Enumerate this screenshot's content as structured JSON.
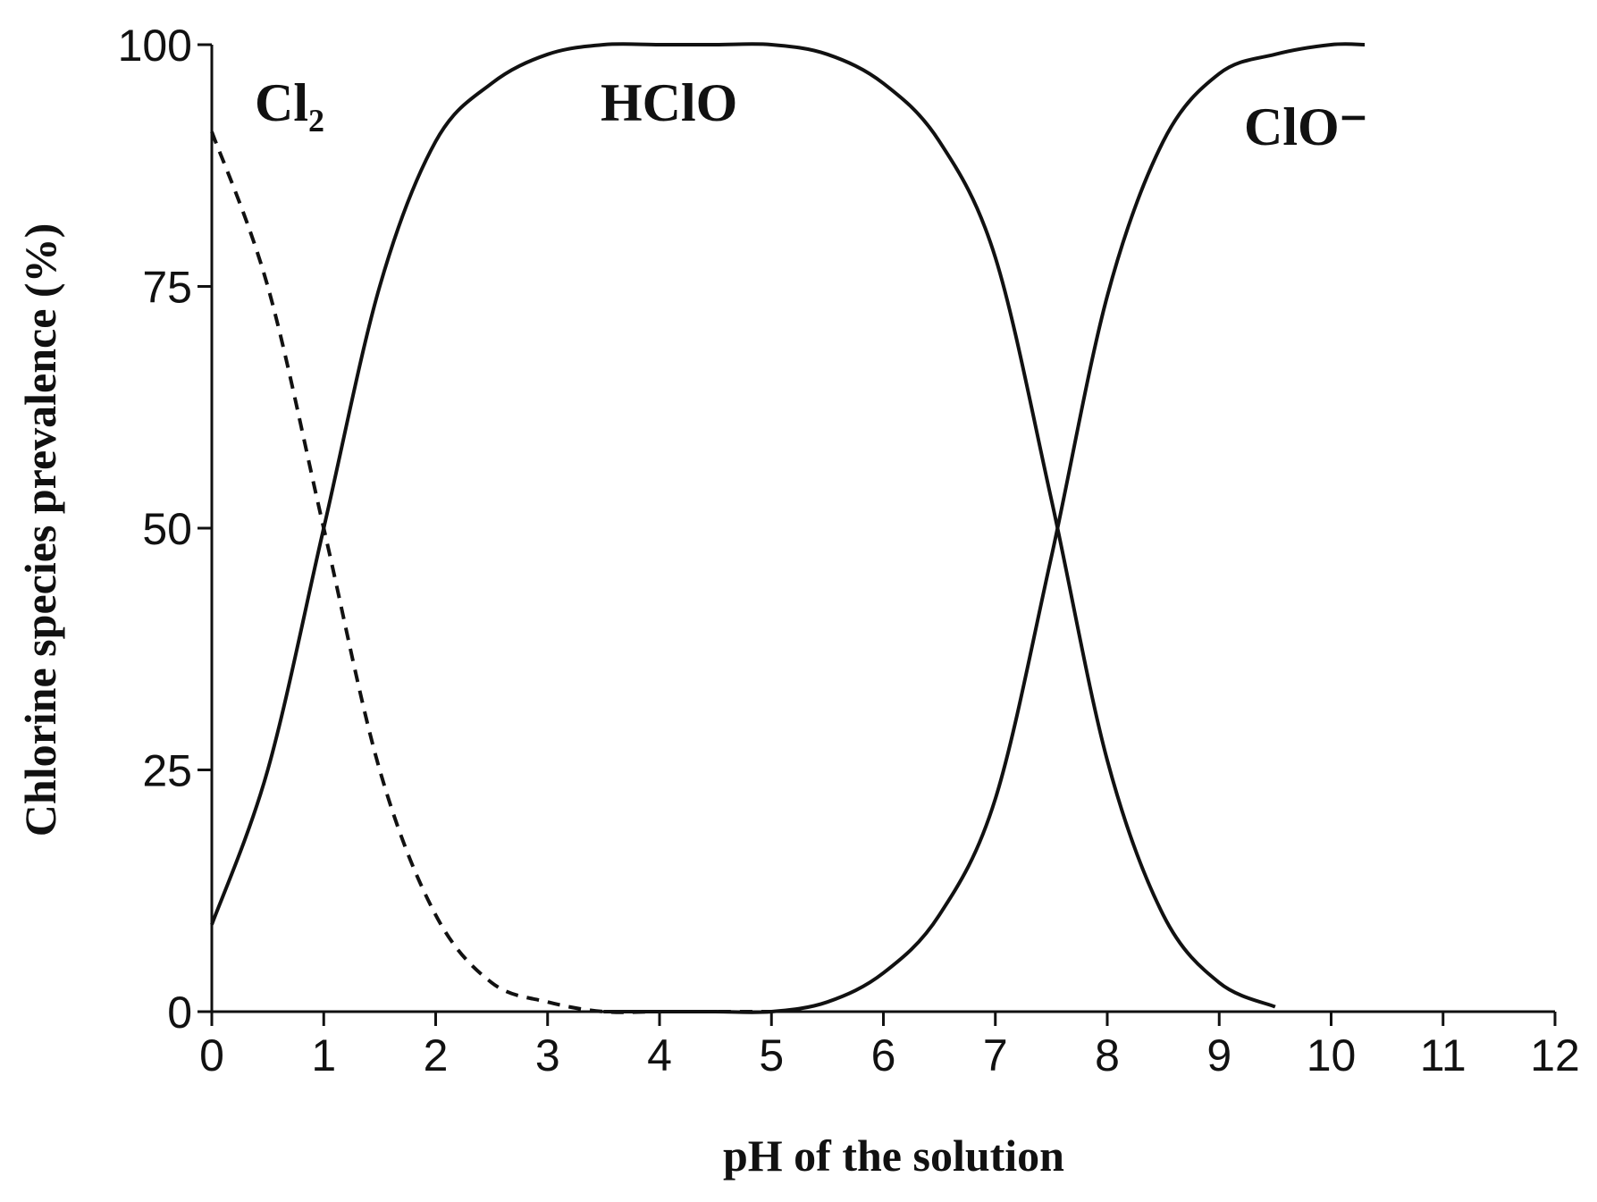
{
  "chart_data": {
    "type": "line",
    "x_label": "pH of the solution",
    "y_label": "Chlorine species prevalence (%)",
    "x": [
      0,
      0.5,
      1,
      1.5,
      2,
      2.5,
      3,
      3.5,
      4,
      4.5,
      5,
      5.5,
      6,
      6.5,
      7,
      7.5,
      8,
      8.5,
      9,
      9.5,
      10,
      10.3
    ],
    "series": [
      {
        "name": "Cl₂",
        "color": "#111111",
        "dashed": true,
        "values": [
          91,
          75,
          50,
          25,
          10,
          3,
          1,
          0,
          0,
          0,
          0,
          null,
          null,
          null,
          null,
          null,
          null,
          null,
          null,
          null,
          null,
          null
        ]
      },
      {
        "name": "HClO",
        "color": "#111111",
        "dashed": false,
        "values": [
          9,
          25,
          50,
          75,
          90,
          96,
          99,
          100,
          100,
          100,
          100,
          99,
          96,
          90,
          78,
          53,
          26,
          10,
          3,
          0.5,
          null,
          null
        ]
      },
      {
        "name": "ClO⁻",
        "color": "#111111",
        "dashed": false,
        "values": [
          null,
          null,
          null,
          null,
          null,
          null,
          null,
          0,
          0,
          0,
          0,
          1,
          4,
          10,
          22,
          47,
          74,
          90,
          97,
          99,
          100,
          100
        ]
      }
    ],
    "xlim": [
      0,
      12
    ],
    "xticks": [
      0,
      1,
      2,
      3,
      4,
      5,
      6,
      7,
      8,
      9,
      10,
      11,
      12
    ],
    "ylim": [
      0,
      100
    ],
    "yticks": [
      0,
      25,
      50,
      75,
      100
    ],
    "grid": false
  }
}
